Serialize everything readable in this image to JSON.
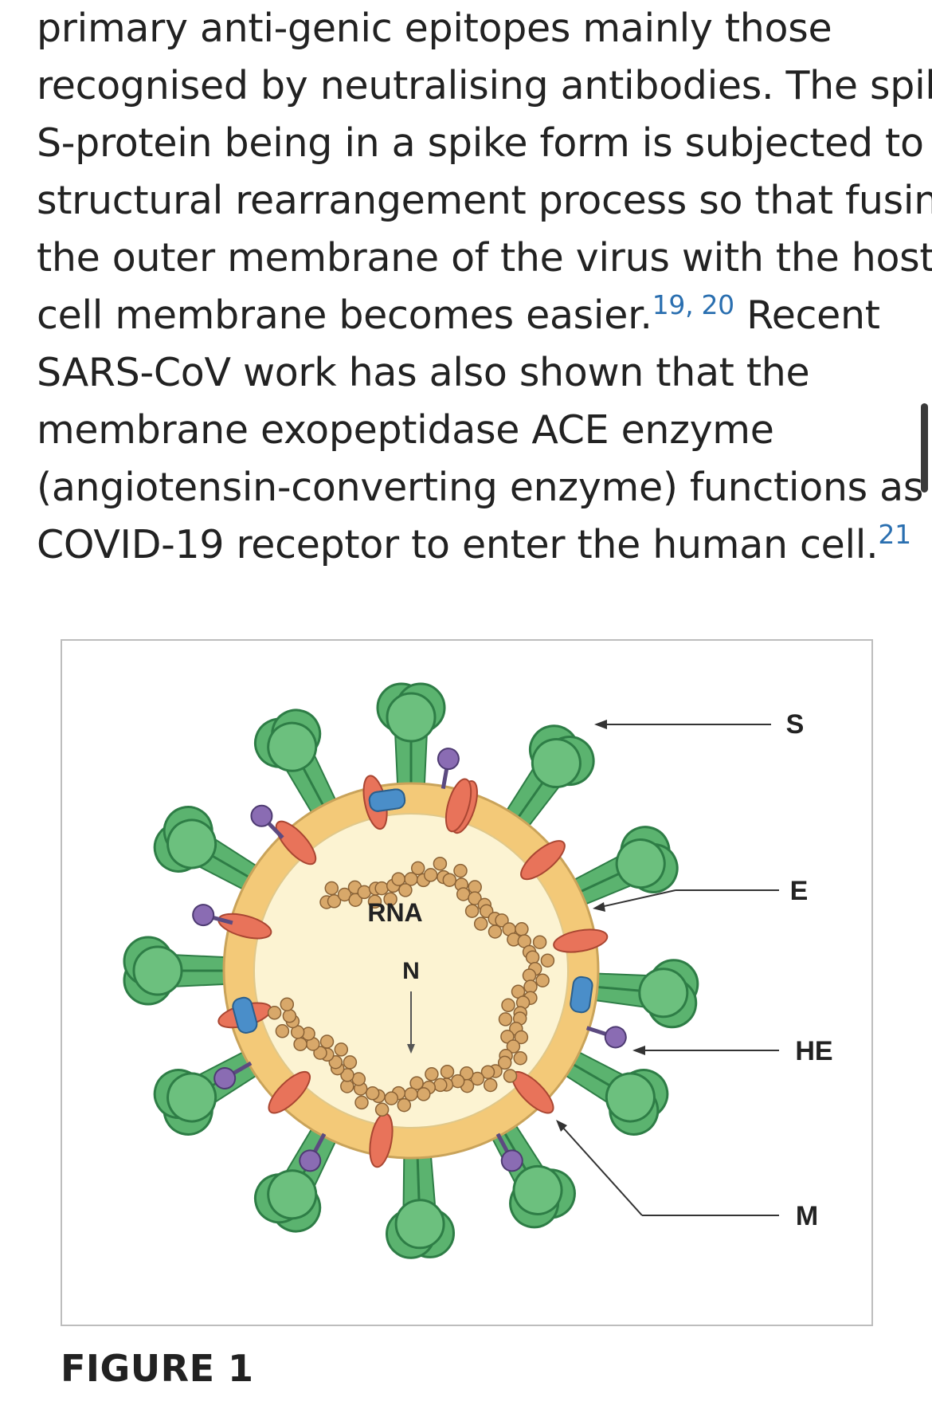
{
  "article": {
    "lines": [
      "primary anti-genic epitopes mainly those",
      "recognised by neutralising antibodies. The spike",
      "S-protein being in a spike form is subjected to a",
      "structural rearrangement process so that fusing",
      "the outer membrane of the virus with the host-"
    ],
    "line6_text": "cell membrane becomes easier.",
    "line6_cite": "19, 20",
    "line6_after": " Recent",
    "line7": "SARS-CoV work has also shown that the",
    "line8": "membrane exopeptidase ACE enzyme",
    "line9": "(angiotensin-converting enzyme) functions as a",
    "line10_text": "COVID-19 receptor to enter the human cell.",
    "line10_cite": "21"
  },
  "figure": {
    "caption": "FIGURE 1",
    "labels": {
      "s": "S",
      "e": "E",
      "he": "HE",
      "m": "M",
      "rna": "RNA",
      "n": "N"
    }
  },
  "colors": {
    "spike_green": "#5bb36f",
    "spike_dark": "#2e7d46",
    "envelope": "#f3c978",
    "core": "#fcf3d2",
    "m_protein": "#e8735a",
    "e_protein": "#4a8ec9",
    "he_protein": "#8a6cb3",
    "rna": "#d8a86a",
    "citation_link": "#2a6fb0"
  }
}
